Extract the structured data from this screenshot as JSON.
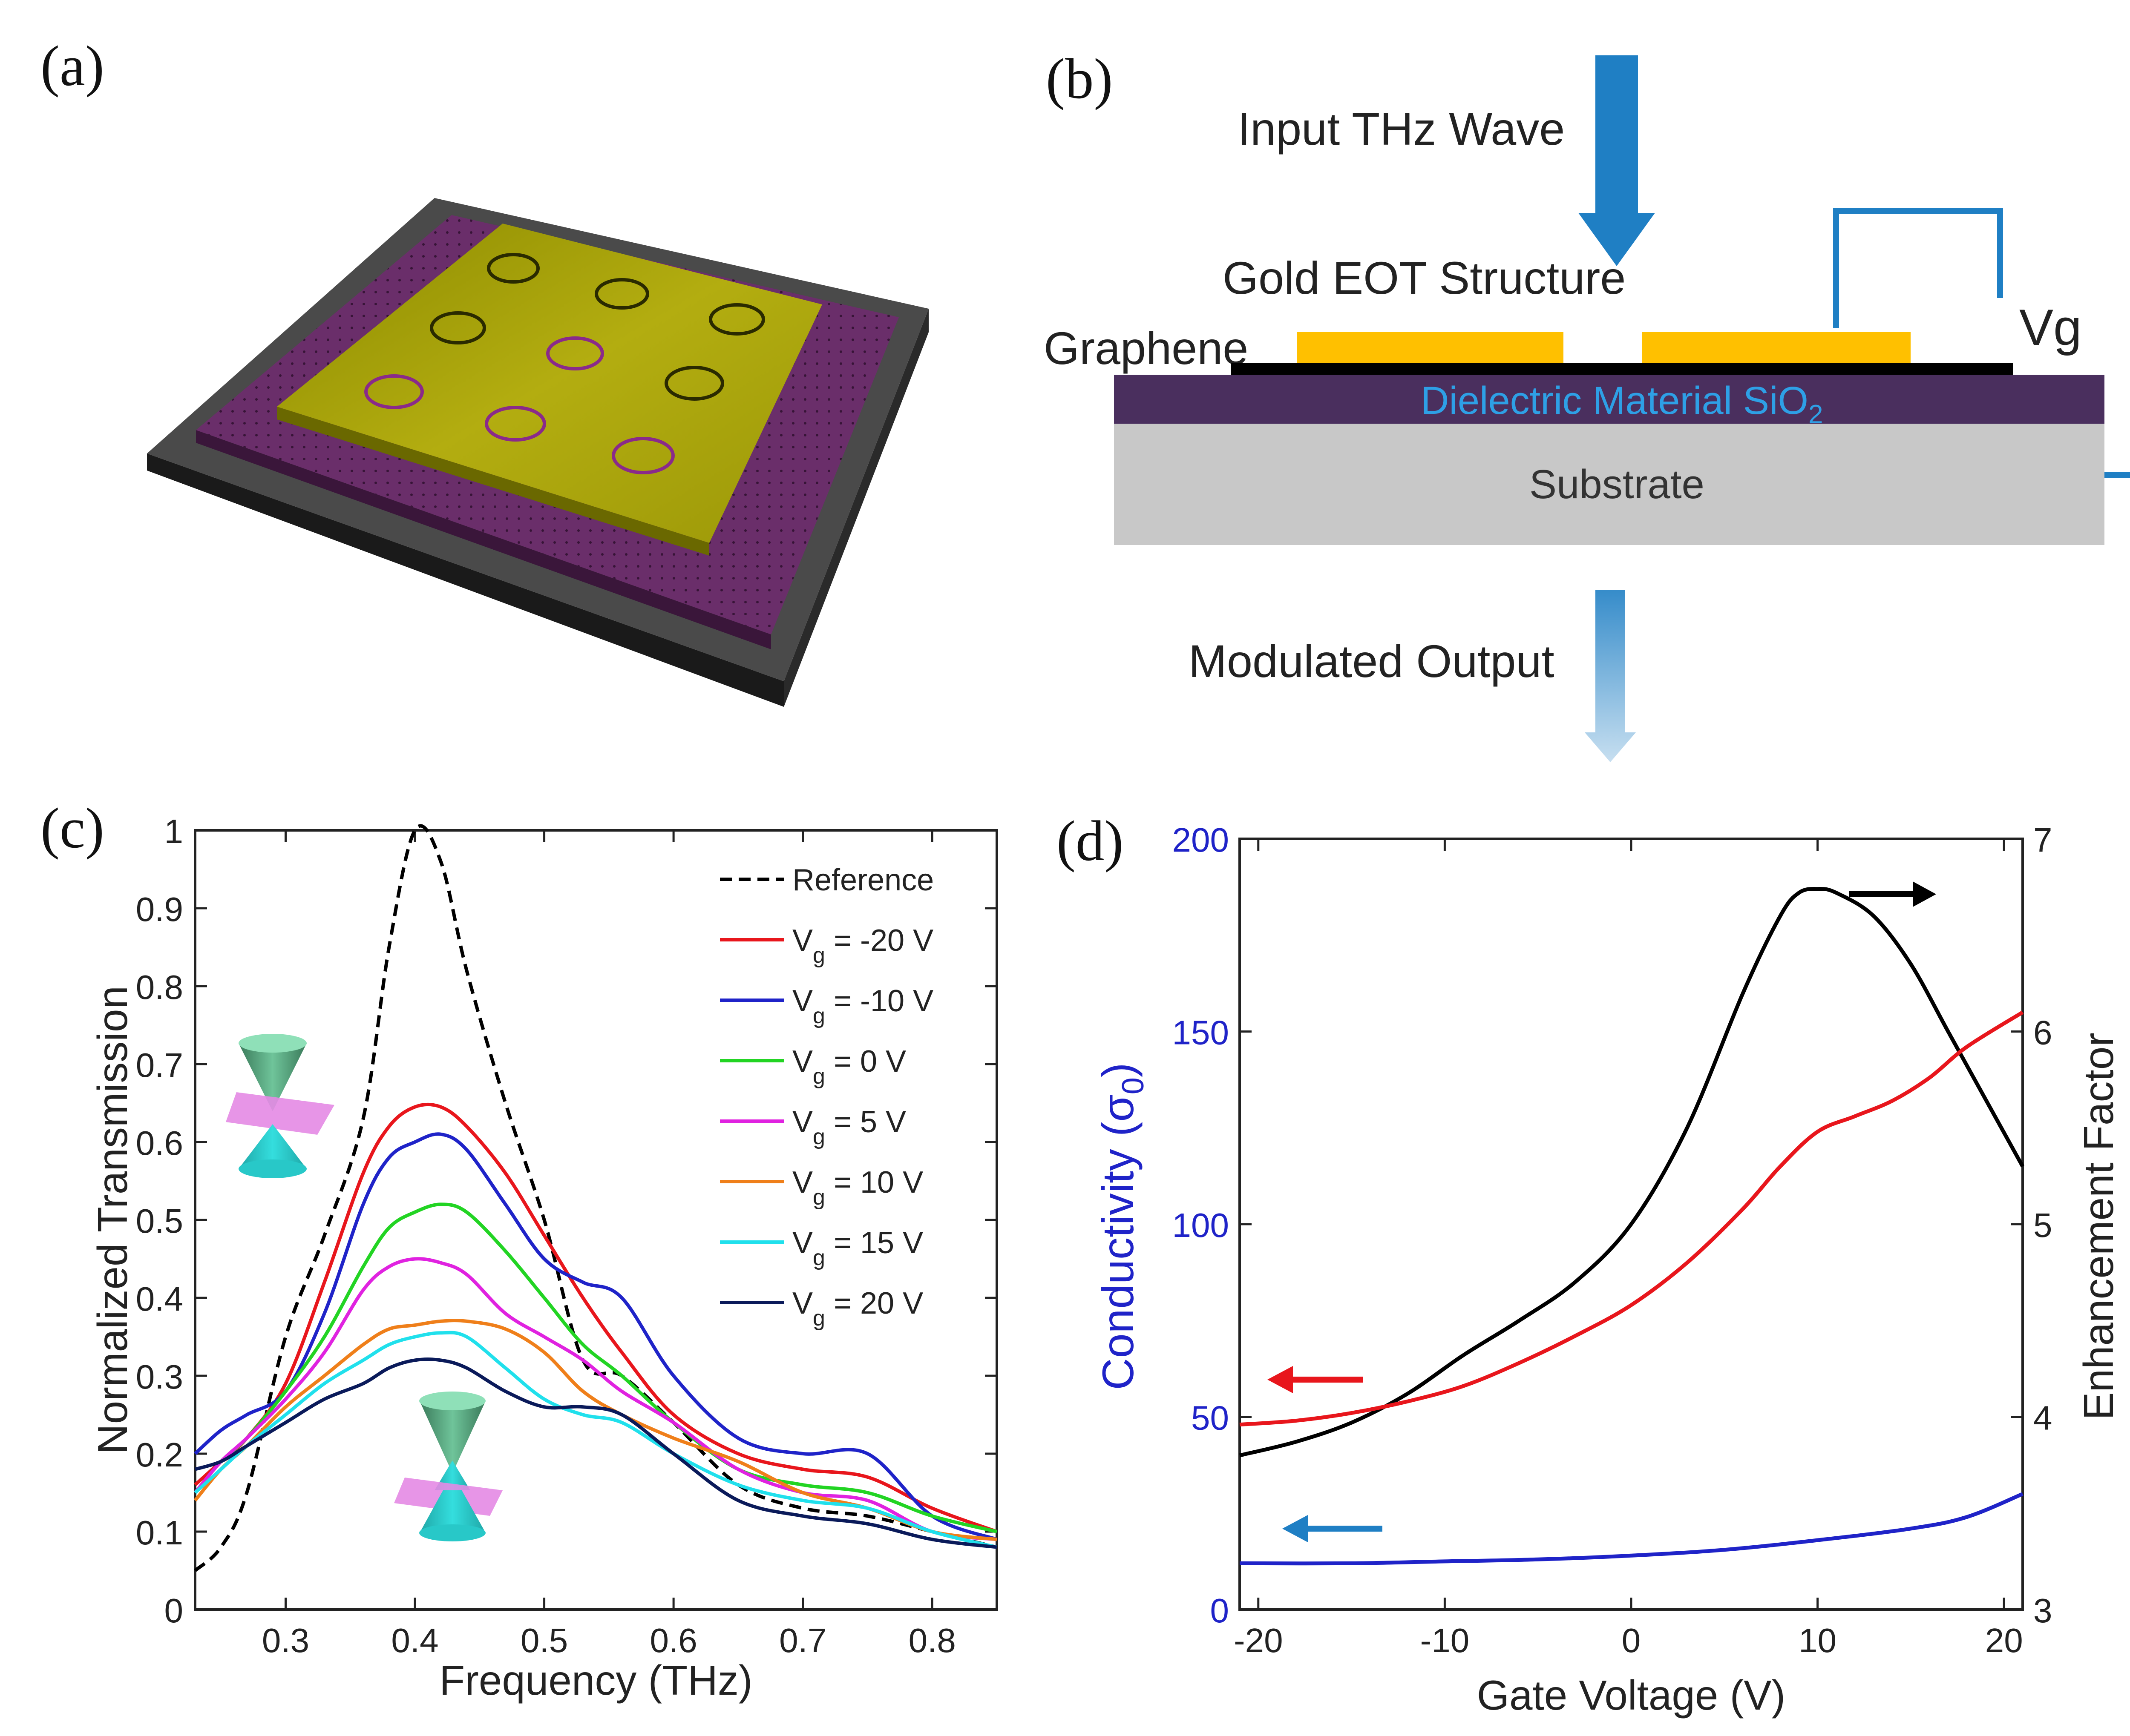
{
  "panels": {
    "a": {
      "label": "(a)"
    },
    "b": {
      "label": "(b)",
      "input": "Input THz Wave",
      "gold": "Gold EOT Structure",
      "graphene": "Graphene",
      "vg": "Vg",
      "dielectric": "Dielectric Material SiO",
      "dielectric_sub": "2",
      "substrate": "Substrate",
      "output": "Modulated Output"
    },
    "c": {
      "label": "(c)"
    },
    "d": {
      "label": "(d)"
    }
  },
  "colors": {
    "arrow_blue": "#1f7fc4",
    "gold": "#ffc000",
    "dielectric": "#4a2f5e",
    "substrate": "#c8c8c8",
    "plate_gold": "#a8a400",
    "plate_purple": "#5e2a5e"
  },
  "chart_data": [
    {
      "type": "line",
      "panel": "c",
      "xlabel": "Frequency (THz)",
      "ylabel": "Normalized Transmission",
      "xlim": [
        0.23,
        0.85
      ],
      "ylim": [
        0,
        1
      ],
      "xticks": [
        "0.3",
        "0.4",
        "0.5",
        "0.6",
        "0.7",
        "0.8"
      ],
      "yticks": [
        "0",
        "0.1",
        "0.2",
        "0.3",
        "0.4",
        "0.5",
        "0.6",
        "0.7",
        "0.8",
        "0.9",
        "1"
      ],
      "x": [
        0.23,
        0.25,
        0.27,
        0.3,
        0.33,
        0.36,
        0.38,
        0.4,
        0.42,
        0.44,
        0.47,
        0.5,
        0.53,
        0.56,
        0.6,
        0.65,
        0.7,
        0.75,
        0.8,
        0.85
      ],
      "series": [
        {
          "name": "Reference",
          "label_main": "Reference",
          "label_sub": "",
          "color": "#000000",
          "dash": true,
          "values": [
            0.05,
            0.08,
            0.15,
            0.35,
            0.48,
            0.63,
            0.85,
            1.0,
            0.96,
            0.82,
            0.65,
            0.5,
            0.32,
            0.3,
            0.24,
            0.16,
            0.13,
            0.12,
            0.1,
            0.08
          ]
        },
        {
          "name": "Vg = -20 V",
          "label_main": "V",
          "label_sub": "g",
          "label_rest": " = -20 V",
          "color": "#e8161c",
          "dash": false,
          "values": [
            0.16,
            0.19,
            0.22,
            0.29,
            0.42,
            0.56,
            0.62,
            0.645,
            0.645,
            0.62,
            0.56,
            0.48,
            0.4,
            0.33,
            0.25,
            0.2,
            0.18,
            0.17,
            0.13,
            0.1
          ]
        },
        {
          "name": "Vg = -10 V",
          "label_main": "V",
          "label_sub": "g",
          "label_rest": " = -10 V",
          "color": "#1f23c8",
          "dash": false,
          "values": [
            0.2,
            0.23,
            0.25,
            0.28,
            0.38,
            0.52,
            0.58,
            0.6,
            0.61,
            0.59,
            0.52,
            0.45,
            0.42,
            0.4,
            0.3,
            0.22,
            0.2,
            0.2,
            0.12,
            0.09
          ]
        },
        {
          "name": "Vg = 0 V",
          "label_main": "V",
          "label_sub": "g",
          "label_rest": " = 0 V",
          "color": "#22d423",
          "dash": false,
          "values": [
            0.15,
            0.19,
            0.22,
            0.28,
            0.35,
            0.44,
            0.49,
            0.51,
            0.52,
            0.51,
            0.46,
            0.4,
            0.34,
            0.3,
            0.24,
            0.18,
            0.16,
            0.15,
            0.12,
            0.1
          ]
        },
        {
          "name": "Vg = 5 V",
          "label_main": "V",
          "label_sub": "g",
          "label_rest": " = 5 V",
          "color": "#e022e0",
          "dash": false,
          "values": [
            0.15,
            0.19,
            0.22,
            0.27,
            0.33,
            0.41,
            0.44,
            0.45,
            0.445,
            0.43,
            0.38,
            0.35,
            0.32,
            0.28,
            0.24,
            0.18,
            0.15,
            0.14,
            0.1,
            0.09
          ]
        },
        {
          "name": "Vg = 10 V",
          "label_main": "V",
          "label_sub": "g",
          "label_rest": " = 10 V",
          "color": "#ef7f1a",
          "dash": false,
          "values": [
            0.14,
            0.18,
            0.21,
            0.26,
            0.3,
            0.34,
            0.36,
            0.365,
            0.37,
            0.37,
            0.36,
            0.33,
            0.28,
            0.25,
            0.22,
            0.19,
            0.15,
            0.13,
            0.1,
            0.09
          ]
        },
        {
          "name": "Vg = 15 V",
          "label_main": "V",
          "label_sub": "g",
          "label_rest": " = 15 V",
          "color": "#20e0ec",
          "dash": false,
          "values": [
            0.15,
            0.18,
            0.21,
            0.25,
            0.29,
            0.32,
            0.34,
            0.35,
            0.355,
            0.35,
            0.31,
            0.27,
            0.25,
            0.24,
            0.2,
            0.16,
            0.14,
            0.13,
            0.1,
            0.08
          ]
        },
        {
          "name": "Vg = 20 V",
          "label_main": "V",
          "label_sub": "g",
          "label_rest": " = 20 V",
          "color": "#0a1a5a",
          "dash": false,
          "values": [
            0.18,
            0.19,
            0.21,
            0.24,
            0.27,
            0.29,
            0.31,
            0.32,
            0.32,
            0.31,
            0.28,
            0.26,
            0.26,
            0.25,
            0.2,
            0.14,
            0.12,
            0.11,
            0.09,
            0.08
          ]
        }
      ]
    },
    {
      "type": "line",
      "panel": "d",
      "xlabel": "Gate Voltage (V)",
      "ylabel_left_main": "Conductivity (σ",
      "ylabel_left_sub": "0",
      "ylabel_left_end": ")",
      "ylabel_right": "Enhancement Factor",
      "xlim": [
        -21,
        21
      ],
      "ylim_left": [
        0,
        200
      ],
      "ylim_right": [
        3,
        7
      ],
      "xticks": [
        "-20",
        "-10",
        "0",
        "10",
        "20"
      ],
      "yticks_left": [
        "0",
        "50",
        "100",
        "150",
        "200"
      ],
      "yticks_right": [
        "3",
        "4",
        "5",
        "6",
        "7"
      ],
      "series": [
        {
          "name": "Enhancement factor",
          "axis": "right",
          "color": "#000000",
          "x": [
            -21,
            -18,
            -15,
            -12,
            -9,
            -6,
            -3,
            0,
            3,
            6,
            8,
            9,
            10,
            11,
            13,
            15,
            17,
            19,
            21
          ],
          "values": [
            3.8,
            3.87,
            3.97,
            4.12,
            4.32,
            4.5,
            4.7,
            5.0,
            5.5,
            6.2,
            6.6,
            6.72,
            6.74,
            6.72,
            6.6,
            6.35,
            6.0,
            5.65,
            5.3
          ]
        },
        {
          "name": "Conductivity (red)",
          "axis": "left",
          "color": "#e8161c",
          "x": [
            -21,
            -18,
            -15,
            -12,
            -9,
            -6,
            -3,
            0,
            3,
            6,
            8,
            10,
            12,
            14,
            16,
            18,
            21
          ],
          "values": [
            48,
            49,
            51,
            54,
            58,
            64,
            71,
            79,
            90,
            104,
            115,
            124,
            128,
            132,
            138,
            146,
            155
          ]
        },
        {
          "name": "Conductivity (blue)",
          "axis": "left",
          "color": "#1f23c8",
          "x": [
            -21,
            -15,
            -10,
            -5,
            0,
            5,
            10,
            15,
            18,
            21
          ],
          "values": [
            12,
            12,
            12.5,
            13,
            14,
            15.5,
            18,
            21,
            24,
            30
          ]
        }
      ]
    }
  ]
}
